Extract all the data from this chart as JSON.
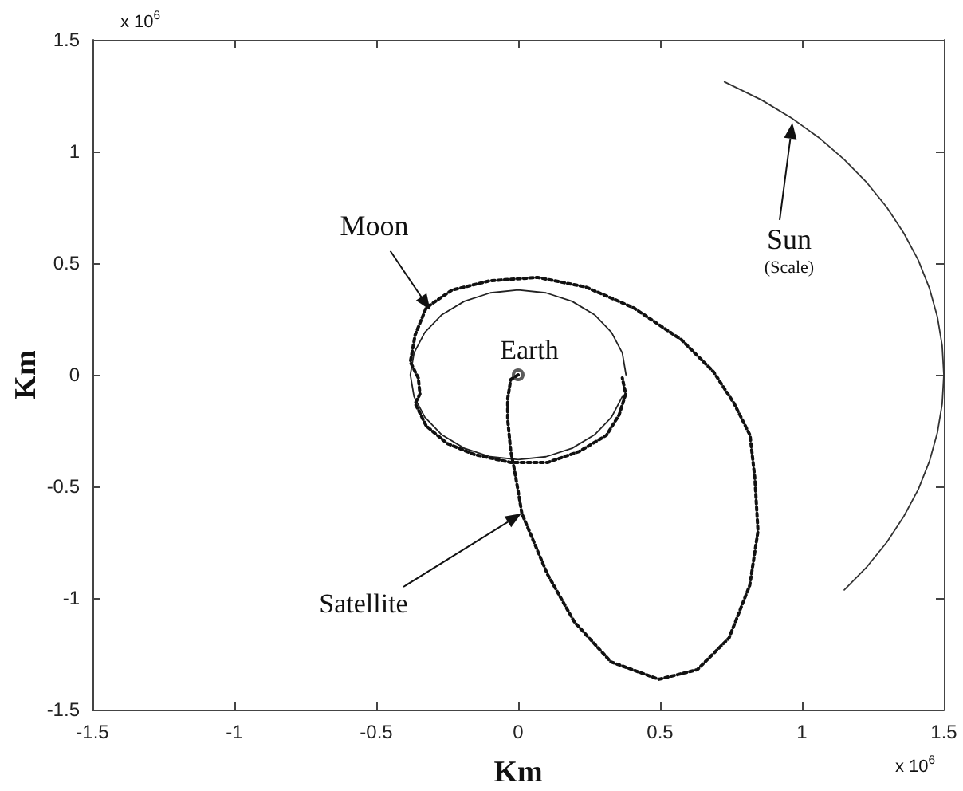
{
  "chart_data": {
    "type": "line",
    "xlabel": "Km",
    "ylabel": "Km",
    "xlim": [
      -1.5,
      1.5
    ],
    "xticks": [
      -1.5,
      -1,
      -0.5,
      0,
      0.5,
      1,
      1.5
    ],
    "ylim": [
      -1.5,
      1.5
    ],
    "yticks": [
      -1.5,
      -1,
      -0.5,
      0,
      0.5,
      1,
      1.5
    ],
    "grid": false,
    "series": [
      {
        "color": "#222222",
        "line_style": "solid",
        "marker": "none",
        "x": [
          0.38,
          0.367,
          0.329,
          0.269,
          0.19,
          0.098,
          0,
          -0.098,
          -0.19,
          -0.269,
          -0.329,
          -0.367,
          -0.38,
          -0.367,
          -0.329,
          -0.269,
          -0.19,
          -0.098,
          0,
          0.098,
          0.19,
          0.269,
          0.329,
          0.367
        ],
        "values": [
          0,
          0.098,
          0.19,
          0.269,
          0.329,
          0.367,
          0.38,
          0.367,
          0.329,
          0.269,
          0.19,
          0.098,
          0,
          -0.098,
          -0.19,
          -0.269,
          -0.329,
          -0.367,
          -0.38,
          -0.367,
          -0.329,
          -0.269,
          -0.19,
          -0.098
        ]
      },
      {
        "color": "#333333",
        "line_style": "solid",
        "marker": "none",
        "x": [
          0.727,
          0.86,
          0.964,
          1.061,
          1.149,
          1.229,
          1.299,
          1.359,
          1.41,
          1.449,
          1.477,
          1.494,
          1.5,
          1.494,
          1.477,
          1.449,
          1.41,
          1.359,
          1.299,
          1.229,
          1.149
        ],
        "values": [
          1.312,
          1.229,
          1.149,
          1.061,
          0.964,
          0.86,
          0.75,
          0.634,
          0.513,
          0.388,
          0.26,
          0.131,
          0,
          -0.131,
          -0.26,
          -0.388,
          -0.513,
          -0.634,
          -0.75,
          -0.86,
          -0.964
        ]
      },
      {
        "color": "#111111",
        "line_style": "dotted",
        "marker": "none",
        "x": [
          0,
          -0.026,
          -0.037,
          -0.037,
          -0.026,
          -0.015,
          0.002,
          0.013,
          0.103,
          0.198,
          0.327,
          0.496,
          0.631,
          0.743,
          0.816,
          0.845,
          0.834,
          0.817,
          0.761,
          0.688,
          0.575,
          0.407,
          0.238,
          0.069,
          -0.099,
          -0.234,
          -0.324,
          -0.363,
          -0.38,
          -0.352,
          -0.346,
          -0.363,
          -0.324,
          -0.251,
          -0.155,
          -0.026,
          0.103,
          0.216,
          0.311,
          0.356,
          0.379,
          0.367
        ],
        "values": [
          0,
          -0.021,
          -0.107,
          -0.2,
          -0.343,
          -0.414,
          -0.536,
          -0.621,
          -0.893,
          -1.107,
          -1.286,
          -1.364,
          -1.321,
          -1.179,
          -0.943,
          -0.7,
          -0.464,
          -0.271,
          -0.129,
          0.014,
          0.157,
          0.3,
          0.393,
          0.436,
          0.421,
          0.379,
          0.3,
          0.179,
          0.057,
          -0.014,
          -0.086,
          -0.129,
          -0.229,
          -0.307,
          -0.357,
          -0.393,
          -0.393,
          -0.343,
          -0.271,
          -0.179,
          -0.086,
          -0.014
        ]
      },
      {
        "type": "scatter",
        "color": "#333333",
        "marker": "circle",
        "x": [
          0
        ],
        "values": [
          0
        ]
      }
    ],
    "annotations": [
      {
        "text": "Moon",
        "x": -0.31,
        "y": 0.29
      },
      {
        "text": "Earth",
        "x": 0,
        "y": 0
      },
      "Sun",
      "(Scale)",
      "Satellite",
      "x 10$^{6}$",
      "x 10$^{6}$"
    ]
  }
}
